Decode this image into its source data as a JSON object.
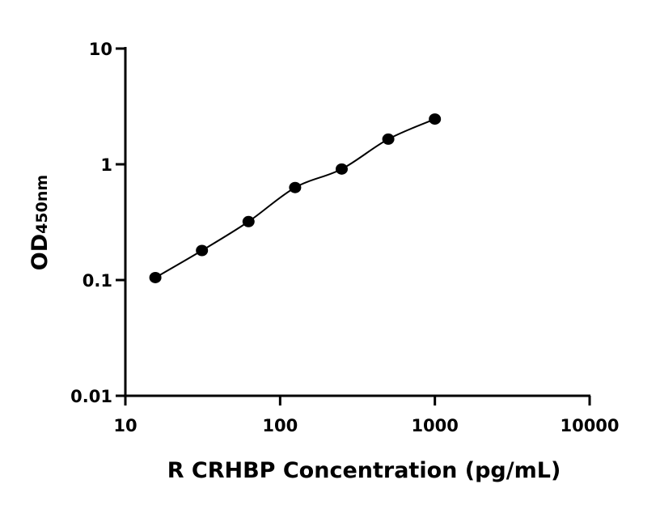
{
  "chart_data": {
    "type": "scatter",
    "xlabel": "R CRHBP Concentration (pg/mL)",
    "ylabel": "OD",
    "ylabel_sub": "450nm",
    "x_log": true,
    "y_log": true,
    "xlim": [
      10,
      10000
    ],
    "xticks": [
      10,
      100,
      1000,
      10000
    ],
    "ylim": [
      0.01,
      10
    ],
    "yticks": [
      0.01,
      0.1,
      1,
      10
    ],
    "series": [
      {
        "color": "#000000",
        "x": [
          15.625,
          31.25,
          62.5,
          125,
          250,
          500,
          1000
        ],
        "values": [
          0.105,
          0.18,
          0.32,
          0.63,
          0.91,
          1.65,
          2.46
        ]
      }
    ]
  }
}
